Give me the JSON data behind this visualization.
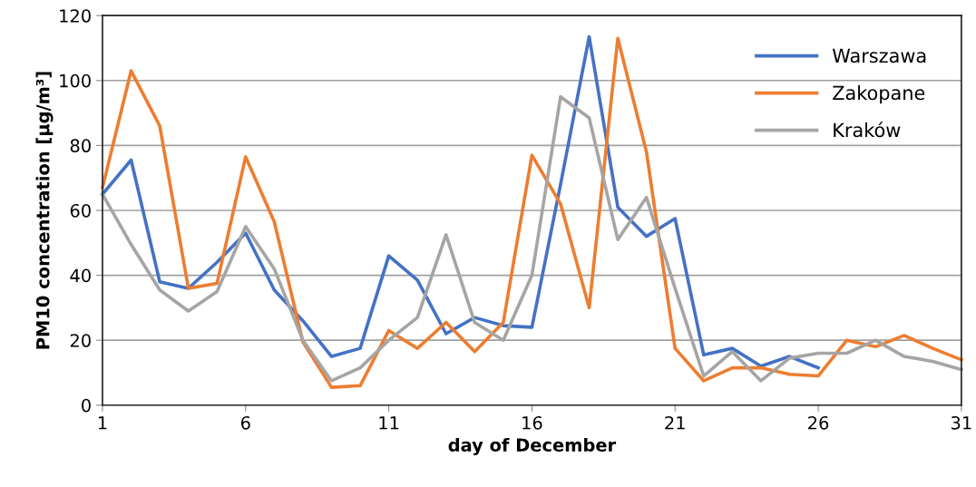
{
  "chart_data": {
    "type": "line",
    "xlabel": "day of December",
    "ylabel": "PM10 concentration [µg/m³]",
    "x": [
      1,
      2,
      3,
      4,
      5,
      6,
      7,
      8,
      9,
      10,
      11,
      12,
      13,
      14,
      15,
      16,
      17,
      18,
      19,
      20,
      21,
      22,
      23,
      24,
      25,
      26,
      27,
      28,
      29,
      30,
      31
    ],
    "series": [
      {
        "name": "Warszawa",
        "color": "#4472c4",
        "values": [
          65,
          75.5,
          38,
          36,
          44,
          53,
          35.5,
          26,
          15,
          17.5,
          46,
          38.5,
          22,
          27,
          24.5,
          24,
          68,
          113.5,
          61,
          52,
          57.5,
          15.5,
          17.5,
          12,
          15,
          11.5,
          null,
          null,
          null,
          null,
          null
        ]
      },
      {
        "name": "Zakopane",
        "color": "#ed7d31",
        "values": [
          67,
          103,
          86,
          36,
          37.5,
          76.5,
          56.5,
          19.5,
          5.5,
          6,
          23,
          17.5,
          25.5,
          16.5,
          25.5,
          77,
          62,
          30,
          113,
          78,
          17.5,
          7.5,
          11.5,
          11.5,
          9.5,
          9,
          20,
          18,
          21.5,
          17.5,
          14
        ]
      },
      {
        "name": "Kraków",
        "color": "#a5a5a5",
        "values": [
          65,
          49.5,
          35.5,
          29,
          35,
          55,
          42,
          20,
          7.5,
          11.5,
          20,
          27,
          52.5,
          25.5,
          20,
          40,
          95,
          88.5,
          51,
          64,
          36,
          9,
          16.5,
          7.5,
          14.5,
          16,
          16,
          20,
          15,
          13.5,
          11
        ]
      }
    ],
    "xlim": [
      1,
      31
    ],
    "xticks": [
      1,
      6,
      11,
      16,
      21,
      26,
      31
    ],
    "ylim": [
      0,
      120
    ],
    "yticks": [
      0,
      20,
      40,
      60,
      80,
      100,
      120
    ],
    "grid": "y",
    "legend": "top right",
    "marker": "none",
    "line_style": "solid"
  }
}
